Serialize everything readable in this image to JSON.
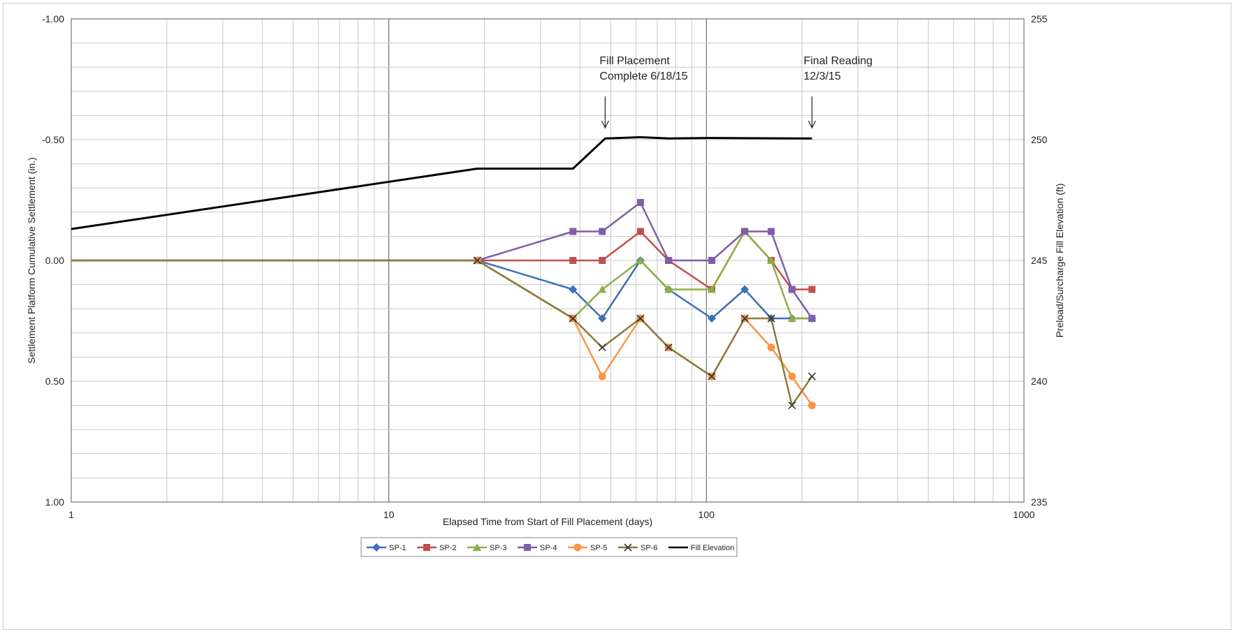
{
  "chart_data": {
    "type": "line",
    "xlabel": "Elapsed Time from Start of Fill Placement (days)",
    "ylabel_left": "Settlement Platform Cumulative Settlement (in.)",
    "ylabel_right": "Preload/Surcharge Fill Elevation (ft)",
    "x_scale": "log",
    "xlim": [
      1,
      1000
    ],
    "ylim_left": [
      1.0,
      -1.0
    ],
    "ylim_right": [
      235,
      255
    ],
    "grid": true,
    "legend_position": "bottom-center",
    "x_ticks": [
      "1",
      "10",
      "100",
      "1000"
    ],
    "y_left_ticks": [
      "-1.00",
      "-0.50",
      "0.00",
      "0.50",
      "1.00"
    ],
    "y_right_ticks": [
      "255",
      "250",
      "245",
      "240",
      "235"
    ],
    "annotations": [
      {
        "lines": [
          "Fill Placement",
          "Complete 6/18/15"
        ],
        "x": 48
      },
      {
        "lines": [
          "Final Reading",
          "12/3/15"
        ],
        "x": 215
      }
    ],
    "series": [
      {
        "name": "SP-1",
        "color": "#3f6fb5",
        "marker": "diamond",
        "x": [
          1,
          19,
          38,
          47,
          62,
          76,
          104,
          132,
          160,
          186,
          215
        ],
        "y": [
          0,
          0,
          0.12,
          0.24,
          0.0,
          0.12,
          0.24,
          0.12,
          0.24,
          0.24,
          0.24
        ]
      },
      {
        "name": "SP-2",
        "color": "#c0504d",
        "marker": "square",
        "x": [
          1,
          19,
          38,
          47,
          62,
          76,
          104,
          132,
          160,
          186,
          215
        ],
        "y": [
          0,
          0,
          0.0,
          0.0,
          -0.12,
          0.0,
          0.12,
          -0.12,
          0.0,
          0.12,
          0.12
        ]
      },
      {
        "name": "SP-3",
        "color": "#8db043",
        "marker": "triangle",
        "x": [
          1,
          19,
          38,
          47,
          62,
          76,
          104,
          132,
          160,
          186,
          215
        ],
        "y": [
          0,
          0,
          0.24,
          0.12,
          0.0,
          0.12,
          0.12,
          -0.12,
          0.0,
          0.24,
          0.24
        ]
      },
      {
        "name": "SP-4",
        "color": "#7e5fa8",
        "marker": "square",
        "x": [
          1,
          19,
          38,
          47,
          62,
          76,
          104,
          132,
          160,
          186,
          215
        ],
        "y": [
          0,
          0,
          -0.12,
          -0.12,
          -0.24,
          0.0,
          0.0,
          -0.12,
          -0.12,
          0.12,
          0.24
        ]
      },
      {
        "name": "SP-5",
        "color": "#f79646",
        "marker": "circle",
        "x": [
          1,
          19,
          38,
          47,
          62,
          76,
          104,
          132,
          160,
          186,
          215
        ],
        "y": [
          0,
          0,
          0.24,
          0.48,
          0.24,
          0.36,
          0.48,
          0.24,
          0.36,
          0.48,
          0.6
        ]
      },
      {
        "name": "SP-6",
        "color": "#8a7a3e",
        "marker": "x",
        "x": [
          1,
          19,
          38,
          47,
          62,
          76,
          104,
          132,
          160,
          186,
          215
        ],
        "y": [
          0,
          0,
          0.24,
          0.36,
          0.24,
          0.36,
          0.48,
          0.24,
          0.24,
          0.6,
          0.48
        ]
      },
      {
        "name": "Fill Elevation",
        "color": "#000000",
        "marker": "none",
        "axis": "right",
        "x": [
          1,
          19,
          38,
          48,
          62,
          76,
          104,
          215
        ],
        "y": [
          246.3,
          248.8,
          248.8,
          250.05,
          250.1,
          250.05,
          250.07,
          250.05
        ]
      }
    ]
  }
}
